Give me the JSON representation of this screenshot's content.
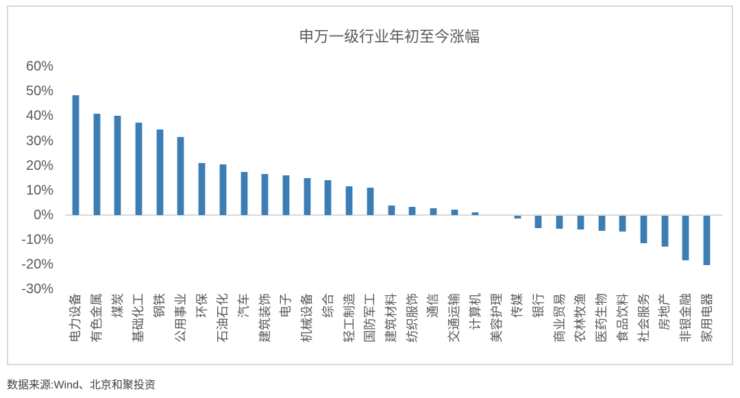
{
  "chart": {
    "title": "申万一级行业年初至今涨幅",
    "source_note": "数据来源:Wind、北京和聚投资"
  },
  "chart_data": {
    "type": "bar",
    "title": "申万一级行业年初至今涨幅",
    "categories": [
      "电力设备",
      "有色金属",
      "煤炭",
      "基础化工",
      "钢铁",
      "公用事业",
      "环保",
      "石油石化",
      "汽车",
      "建筑装饰",
      "电子",
      "机械设备",
      "综合",
      "轻工制造",
      "国防军工",
      "建筑材料",
      "纺织服饰",
      "通信",
      "交通运输",
      "计算机",
      "美容护理",
      "传媒",
      "银行",
      "商业贸易",
      "农林牧渔",
      "医药生物",
      "食品饮料",
      "社会服务",
      "房地产",
      "非银金融",
      "家用电器"
    ],
    "values": [
      48.5,
      41.0,
      40.0,
      37.5,
      34.5,
      31.5,
      21.0,
      20.5,
      17.5,
      16.5,
      16.0,
      15.0,
      14.0,
      11.5,
      11.0,
      4.0,
      3.3,
      2.8,
      2.2,
      1.0,
      0.0,
      -1.2,
      -5.0,
      -5.2,
      -5.6,
      -6.0,
      -6.5,
      -11.0,
      -12.5,
      -18.0,
      -20.0
    ],
    "unit": "%",
    "xlabel": "",
    "ylabel": "",
    "ylim": [
      -30,
      60
    ],
    "y_tick_labels": [
      "60%",
      "50%",
      "40%",
      "30%",
      "20%",
      "10%",
      "0%",
      "-10%",
      "-20%",
      "-30%"
    ],
    "y_tick_values": [
      60,
      50,
      40,
      30,
      20,
      10,
      0,
      -10,
      -20,
      -30
    ],
    "grid": "off",
    "legend_position": "none",
    "bar_color": "#3C7DB4",
    "bar_edge_color": "#AECDE8",
    "axis_line_color": "#D9D9D9",
    "frame_border_color": "#D9D9D9",
    "text_color": "#595959"
  }
}
